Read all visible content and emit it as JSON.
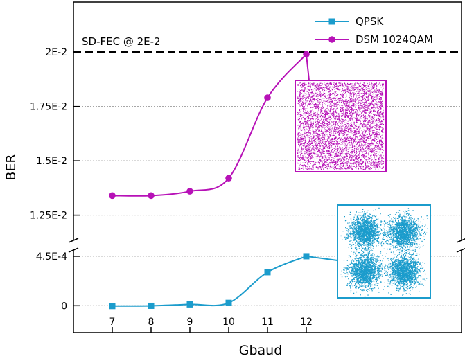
{
  "chart_data": {
    "type": "line",
    "xlabel": "Gbaud",
    "ylabel": "BER",
    "x": [
      7,
      8,
      9,
      10,
      11,
      12
    ],
    "x_ticks": [
      "7",
      "8",
      "9",
      "10",
      "11",
      "12"
    ],
    "xlim": [
      6,
      16
    ],
    "axis_break": true,
    "upper_panel": {
      "ylim": [
        0.0115,
        0.0223
      ],
      "y_ticks": [
        {
          "value": 0.0125,
          "label": "1.25E-2"
        },
        {
          "value": 0.015,
          "label": "1.5E-2"
        },
        {
          "value": 0.0175,
          "label": "1.75E-2"
        },
        {
          "value": 0.02,
          "label": "2E-2"
        }
      ],
      "threshold": {
        "value": 0.02,
        "label": "SD-FEC @ 2E-2",
        "style": "dashed"
      }
    },
    "lower_panel": {
      "ylim": [
        -8e-05,
        0.0005
      ],
      "y_ticks": [
        {
          "value": 0,
          "label": "0"
        },
        {
          "value": 0.00045,
          "label": "4.5E-4"
        }
      ]
    },
    "series": [
      {
        "name": "QPSK",
        "panel": "lower",
        "marker": "square",
        "color": "#1b9ccc",
        "values": [
          -3e-06,
          -1e-06,
          1.2e-05,
          2.6e-05,
          0.000305,
          0.00045
        ]
      },
      {
        "name": "DSM 1024QAM",
        "panel": "upper",
        "marker": "circle",
        "color": "#b711b7",
        "values": [
          0.0134,
          0.0134,
          0.0136,
          0.0142,
          0.0179,
          0.0199
        ]
      }
    ],
    "insets": [
      {
        "name": "DSM 1024QAM constellation",
        "color": "#b711b7",
        "series": "DSM 1024QAM",
        "point_x": 12
      },
      {
        "name": "QPSK constellation",
        "color": "#1b9ccc",
        "series": "QPSK",
        "point_x": 12
      }
    ],
    "legend_position": "top-right",
    "grid": "horizontal dotted"
  }
}
